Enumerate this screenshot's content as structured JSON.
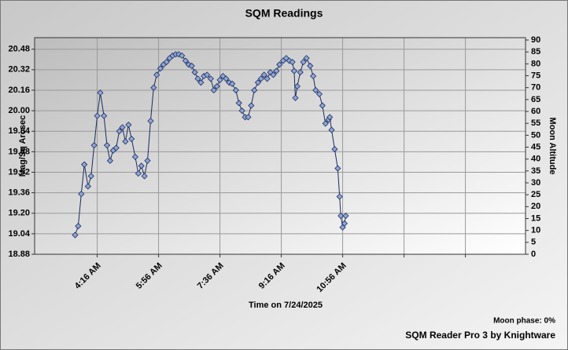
{
  "chart_data": {
    "type": "scatter",
    "title": "SQM Readings",
    "ylabel": "Mag/Sq Arcsec",
    "y2label": "Moon Altitude",
    "xlabel": "Time on 7/24/2025",
    "annotations": [
      "Moon phase: 0%",
      "SQM Reader Pro 3 by Knightware"
    ],
    "grid": true,
    "xlim": [
      154,
      954
    ],
    "xticks": [
      {
        "value": 256,
        "label": "4:16 AM"
      },
      {
        "value": 356,
        "label": "5:56 AM"
      },
      {
        "value": 456,
        "label": "7:36 AM"
      },
      {
        "value": 556,
        "label": "9:16 AM"
      },
      {
        "value": 656,
        "label": "10:56 AM"
      },
      {
        "value": 756
      },
      {
        "value": 856
      }
    ],
    "ylim": [
      18.88,
      20.57
    ],
    "yticks": [
      18.88,
      19.04,
      {
        "value": 19.2,
        "label": "19.20"
      },
      19.36,
      19.52,
      19.68,
      19.84,
      {
        "value": 20,
        "label": "20.00"
      },
      20.16,
      20.32,
      20.48
    ],
    "y2lim": [
      0,
      91
    ],
    "y2ticks": [
      0,
      5,
      10,
      15,
      20,
      25,
      30,
      35,
      40,
      45,
      50,
      55,
      60,
      65,
      70,
      75,
      80,
      85,
      90
    ],
    "series": [
      {
        "color": "#8fa6d6",
        "x": [
          220,
          225,
          230,
          235,
          241,
          246,
          251,
          256,
          261,
          267,
          272,
          277,
          282,
          287,
          292,
          297,
          302,
          307,
          312,
          318,
          323,
          328,
          333,
          338,
          343,
          348,
          353,
          359,
          364,
          369,
          374,
          379,
          384,
          389,
          394,
          400,
          405,
          410,
          415,
          420,
          425,
          430,
          435,
          441,
          446,
          451,
          456,
          461,
          466,
          471,
          476,
          482,
          487,
          492,
          497,
          502,
          507,
          512,
          518,
          523,
          528,
          533,
          538,
          543,
          548,
          553,
          559,
          564,
          569,
          574,
          577,
          579,
          582,
          587,
          592,
          597,
          603,
          608,
          612,
          618,
          623,
          628,
          633,
          635,
          638,
          643,
          648,
          651,
          653,
          656,
          659,
          661
        ],
        "values": [
          19.03,
          19.1,
          19.35,
          19.58,
          19.41,
          19.49,
          19.73,
          19.96,
          20.14,
          19.96,
          19.73,
          19.61,
          19.69,
          19.71,
          19.84,
          19.87,
          19.76,
          19.89,
          19.78,
          19.64,
          19.51,
          19.57,
          19.49,
          19.61,
          19.92,
          20.18,
          20.28,
          20.33,
          20.36,
          20.38,
          20.41,
          20.43,
          20.44,
          20.44,
          20.43,
          20.39,
          20.36,
          20.35,
          20.3,
          20.25,
          20.22,
          20.27,
          20.28,
          20.25,
          20.16,
          20.19,
          20.24,
          20.27,
          20.25,
          20.22,
          20.21,
          20.16,
          20.06,
          20.0,
          19.95,
          19.95,
          20.04,
          20.16,
          20.22,
          20.25,
          20.28,
          20.25,
          20.3,
          20.28,
          20.31,
          20.36,
          20.39,
          20.41,
          20.39,
          20.38,
          20.31,
          20.1,
          20.19,
          20.3,
          20.38,
          20.41,
          20.35,
          20.27,
          20.16,
          20.13,
          20.04,
          19.9,
          19.93,
          19.95,
          19.85,
          19.7,
          19.55,
          19.33,
          19.18,
          19.09,
          19.12,
          19.18
        ]
      }
    ]
  }
}
